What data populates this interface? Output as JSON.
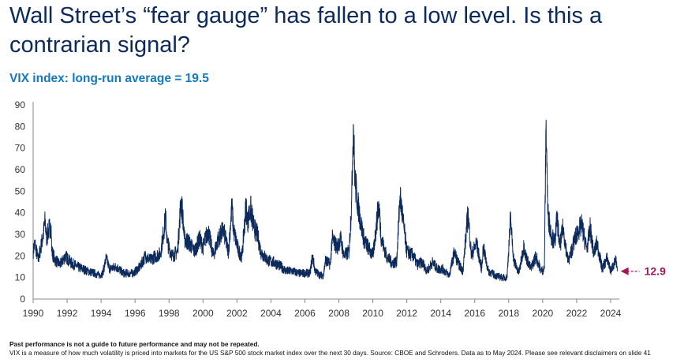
{
  "title": "Wall Street’s “fear gauge” has fallen to a low level. Is this a contrarian signal?",
  "subtitle": "VIX index: long-run average = 19.5",
  "footer": {
    "disclaimer": "Past performance is not a guide to future performance and may not be repeated.",
    "note": "VIX is a measure of how much volatility is priced into markets for the US S&P 500 stock market index over the next 30 days. Source: CBOE and Schroders. Data as to May 2024. Please see relevant disclaimers on slide 41"
  },
  "colors": {
    "line": "#0d2a5c",
    "annotation": "#a3185a",
    "title": "#0d2a5c",
    "subtitle": "#1479bd"
  },
  "chart_data": {
    "type": "line",
    "title": "VIX index: long-run average = 19.5",
    "xlabel": "",
    "ylabel": "",
    "xlim": [
      1990,
      2024.6
    ],
    "ylim": [
      0,
      90
    ],
    "yticks": [
      0,
      10,
      20,
      30,
      40,
      50,
      60,
      70,
      80,
      90
    ],
    "xticks": [
      1990,
      1992,
      1994,
      1996,
      1998,
      2000,
      2002,
      2004,
      2006,
      2008,
      2010,
      2012,
      2014,
      2016,
      2018,
      2020,
      2022,
      2024
    ],
    "grid": false,
    "annotation": {
      "label": "12.9",
      "x": 2024.4,
      "y": 12.9
    },
    "series": [
      {
        "name": "VIX",
        "points": [
          [
            1990.0,
            22
          ],
          [
            1990.1,
            26
          ],
          [
            1990.3,
            18
          ],
          [
            1990.6,
            30
          ],
          [
            1990.7,
            36
          ],
          [
            1990.8,
            28
          ],
          [
            1990.9,
            32
          ],
          [
            1991.05,
            34
          ],
          [
            1991.1,
            22
          ],
          [
            1991.3,
            18
          ],
          [
            1991.6,
            16
          ],
          [
            1991.9,
            20
          ],
          [
            1992.2,
            17
          ],
          [
            1992.6,
            15
          ],
          [
            1992.9,
            14
          ],
          [
            1993.2,
            13
          ],
          [
            1993.6,
            12
          ],
          [
            1993.9,
            11
          ],
          [
            1994.1,
            12
          ],
          [
            1994.3,
            19
          ],
          [
            1994.5,
            14
          ],
          [
            1994.9,
            15
          ],
          [
            1995.3,
            12
          ],
          [
            1995.6,
            12
          ],
          [
            1995.9,
            12
          ],
          [
            1996.3,
            15
          ],
          [
            1996.6,
            20
          ],
          [
            1996.9,
            18
          ],
          [
            1997.2,
            20
          ],
          [
            1997.5,
            21
          ],
          [
            1997.8,
            38
          ],
          [
            1997.9,
            26
          ],
          [
            1998.2,
            20
          ],
          [
            1998.5,
            22
          ],
          [
            1998.7,
            45
          ],
          [
            1998.8,
            40
          ],
          [
            1998.9,
            28
          ],
          [
            1999.2,
            26
          ],
          [
            1999.5,
            22
          ],
          [
            1999.8,
            28
          ],
          [
            2000.0,
            24
          ],
          [
            2000.3,
            32
          ],
          [
            2000.6,
            20
          ],
          [
            2000.9,
            28
          ],
          [
            2001.2,
            32
          ],
          [
            2001.5,
            22
          ],
          [
            2001.7,
            43
          ],
          [
            2001.8,
            32
          ],
          [
            2002.1,
            22
          ],
          [
            2002.3,
            20
          ],
          [
            2002.55,
            45
          ],
          [
            2002.6,
            35
          ],
          [
            2002.8,
            42
          ],
          [
            2003.0,
            33
          ],
          [
            2003.2,
            30
          ],
          [
            2003.4,
            22
          ],
          [
            2003.8,
            18
          ],
          [
            2004.2,
            17
          ],
          [
            2004.6,
            15
          ],
          [
            2004.9,
            13
          ],
          [
            2005.3,
            13
          ],
          [
            2005.6,
            12
          ],
          [
            2005.9,
            12
          ],
          [
            2006.3,
            12
          ],
          [
            2006.45,
            20
          ],
          [
            2006.6,
            13
          ],
          [
            2006.9,
            11
          ],
          [
            2007.1,
            11
          ],
          [
            2007.2,
            18
          ],
          [
            2007.5,
            16
          ],
          [
            2007.6,
            28
          ],
          [
            2007.9,
            24
          ],
          [
            2008.1,
            28
          ],
          [
            2008.3,
            20
          ],
          [
            2008.6,
            22
          ],
          [
            2008.75,
            45
          ],
          [
            2008.85,
            81
          ],
          [
            2008.95,
            55
          ],
          [
            2009.1,
            45
          ],
          [
            2009.3,
            35
          ],
          [
            2009.5,
            27
          ],
          [
            2009.8,
            23
          ],
          [
            2010.0,
            20
          ],
          [
            2010.35,
            44
          ],
          [
            2010.5,
            28
          ],
          [
            2010.8,
            20
          ],
          [
            2011.1,
            17
          ],
          [
            2011.4,
            17
          ],
          [
            2011.6,
            48
          ],
          [
            2011.8,
            35
          ],
          [
            2012.0,
            22
          ],
          [
            2012.4,
            20
          ],
          [
            2012.6,
            16
          ],
          [
            2012.9,
            17
          ],
          [
            2013.2,
            13
          ],
          [
            2013.5,
            17
          ],
          [
            2013.8,
            14
          ],
          [
            2014.1,
            14
          ],
          [
            2014.5,
            11
          ],
          [
            2014.8,
            22
          ],
          [
            2015.0,
            17
          ],
          [
            2015.3,
            13
          ],
          [
            2015.6,
            40
          ],
          [
            2015.8,
            20
          ],
          [
            2016.1,
            26
          ],
          [
            2016.4,
            14
          ],
          [
            2016.5,
            24
          ],
          [
            2016.8,
            13
          ],
          [
            2017.2,
            11
          ],
          [
            2017.6,
            10
          ],
          [
            2017.9,
            10
          ],
          [
            2018.1,
            37
          ],
          [
            2018.3,
            18
          ],
          [
            2018.6,
            12
          ],
          [
            2018.9,
            25
          ],
          [
            2019.0,
            20
          ],
          [
            2019.3,
            14
          ],
          [
            2019.6,
            20
          ],
          [
            2019.9,
            13
          ],
          [
            2020.1,
            14
          ],
          [
            2020.2,
            83
          ],
          [
            2020.3,
            40
          ],
          [
            2020.5,
            30
          ],
          [
            2020.7,
            26
          ],
          [
            2020.85,
            38
          ],
          [
            2021.0,
            24
          ],
          [
            2021.2,
            33
          ],
          [
            2021.5,
            17
          ],
          [
            2021.9,
            28
          ],
          [
            2022.1,
            32
          ],
          [
            2022.3,
            34
          ],
          [
            2022.6,
            23
          ],
          [
            2022.8,
            33
          ],
          [
            2023.0,
            21
          ],
          [
            2023.2,
            26
          ],
          [
            2023.5,
            14
          ],
          [
            2023.8,
            19
          ],
          [
            2024.0,
            13
          ],
          [
            2024.3,
            18
          ],
          [
            2024.4,
            12.9
          ]
        ]
      }
    ]
  }
}
